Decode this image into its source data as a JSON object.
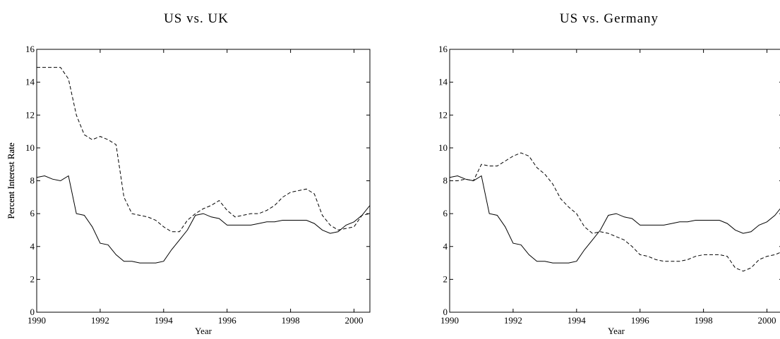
{
  "chart_data": [
    {
      "type": "line",
      "title": "US vs. UK",
      "xlabel": "Year",
      "ylabel": "Percent Interest Rate",
      "xlim": [
        1990,
        2000.5
      ],
      "ylim": [
        0,
        16
      ],
      "xticks": [
        1990,
        1992,
        1994,
        1996,
        1998,
        2000
      ],
      "yticks": [
        0,
        2,
        4,
        6,
        8,
        10,
        12,
        14,
        16
      ],
      "x": [
        1990,
        1990.25,
        1990.5,
        1990.75,
        1991,
        1991.25,
        1991.5,
        1991.75,
        1992,
        1992.25,
        1992.5,
        1992.75,
        1993,
        1993.25,
        1993.5,
        1993.75,
        1994,
        1994.25,
        1994.5,
        1994.75,
        1995,
        1995.25,
        1995.5,
        1995.75,
        1996,
        1996.25,
        1996.5,
        1996.75,
        1997,
        1997.25,
        1997.5,
        1997.75,
        1998,
        1998.25,
        1998.5,
        1998.75,
        1999,
        1999.25,
        1999.5,
        1999.75,
        2000,
        2000.25,
        2000.5
      ],
      "series": [
        {
          "color": "#000000",
          "dash": false,
          "values": [
            8.2,
            8.3,
            8.1,
            8.0,
            8.3,
            6.0,
            5.9,
            5.2,
            4.2,
            4.1,
            3.5,
            3.1,
            3.1,
            3.0,
            3.0,
            3.0,
            3.1,
            3.8,
            4.4,
            5.0,
            5.9,
            6.0,
            5.8,
            5.7,
            5.3,
            5.3,
            5.3,
            5.3,
            5.4,
            5.5,
            5.5,
            5.6,
            5.6,
            5.6,
            5.6,
            5.4,
            5.0,
            4.8,
            4.9,
            5.3,
            5.5,
            5.9,
            6.5
          ]
        },
        {
          "color": "#000000",
          "dash": true,
          "values": [
            14.9,
            14.9,
            14.9,
            14.9,
            14.2,
            12.0,
            10.8,
            10.5,
            10.7,
            10.5,
            10.2,
            7.0,
            6.0,
            5.9,
            5.8,
            5.6,
            5.2,
            4.9,
            4.9,
            5.6,
            6.0,
            6.3,
            6.5,
            6.8,
            6.2,
            5.8,
            5.9,
            6.0,
            6.0,
            6.2,
            6.5,
            7.0,
            7.3,
            7.4,
            7.5,
            7.2,
            5.9,
            5.3,
            5.0,
            5.1,
            5.2,
            5.9,
            6.0
          ]
        }
      ]
    },
    {
      "type": "line",
      "title": "US vs. Germany",
      "xlabel": "Year",
      "ylabel": "Percent Interest Rate",
      "xlim": [
        1990,
        2000.5
      ],
      "ylim": [
        0,
        16
      ],
      "xticks": [
        1990,
        1992,
        1994,
        1996,
        1998,
        2000
      ],
      "yticks": [
        0,
        2,
        4,
        6,
        8,
        10,
        12,
        14,
        16
      ],
      "x": [
        1990,
        1990.25,
        1990.5,
        1990.75,
        1991,
        1991.25,
        1991.5,
        1991.75,
        1992,
        1992.25,
        1992.5,
        1992.75,
        1993,
        1993.25,
        1993.5,
        1993.75,
        1994,
        1994.25,
        1994.5,
        1994.75,
        1995,
        1995.25,
        1995.5,
        1995.75,
        1996,
        1996.25,
        1996.5,
        1996.75,
        1997,
        1997.25,
        1997.5,
        1997.75,
        1998,
        1998.25,
        1998.5,
        1998.75,
        1999,
        1999.25,
        1999.5,
        1999.75,
        2000,
        2000.25,
        2000.5
      ],
      "series": [
        {
          "color": "#000000",
          "dash": false,
          "values": [
            8.2,
            8.3,
            8.1,
            8.0,
            8.3,
            6.0,
            5.9,
            5.2,
            4.2,
            4.1,
            3.5,
            3.1,
            3.1,
            3.0,
            3.0,
            3.0,
            3.1,
            3.8,
            4.4,
            5.0,
            5.9,
            6.0,
            5.8,
            5.7,
            5.3,
            5.3,
            5.3,
            5.3,
            5.4,
            5.5,
            5.5,
            5.6,
            5.6,
            5.6,
            5.6,
            5.4,
            5.0,
            4.8,
            4.9,
            5.3,
            5.5,
            5.9,
            6.5
          ]
        },
        {
          "color": "#000000",
          "dash": true,
          "values": [
            8.0,
            8.0,
            8.1,
            8.0,
            9.0,
            8.9,
            8.9,
            9.2,
            9.5,
            9.7,
            9.5,
            8.8,
            8.4,
            7.8,
            6.9,
            6.4,
            6.0,
            5.2,
            4.8,
            4.9,
            4.8,
            4.6,
            4.4,
            4.0,
            3.5,
            3.4,
            3.2,
            3.1,
            3.1,
            3.1,
            3.2,
            3.4,
            3.5,
            3.5,
            3.5,
            3.4,
            2.7,
            2.5,
            2.7,
            3.2,
            3.4,
            3.5,
            3.7
          ]
        }
      ]
    }
  ]
}
